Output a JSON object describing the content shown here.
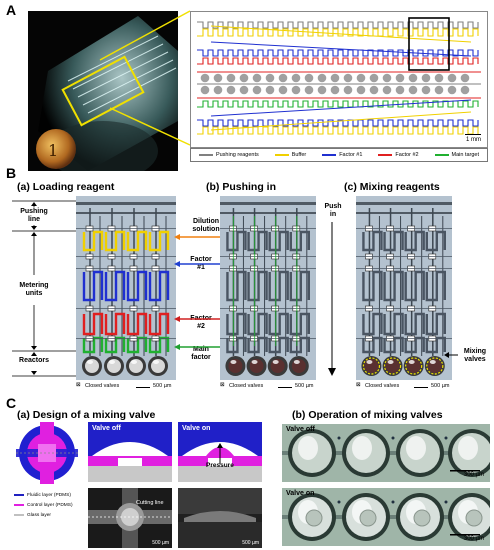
{
  "panels": {
    "a": {
      "letter": "A",
      "scale_bar": "1 mm",
      "legend": [
        {
          "label": "Pushing reagents",
          "color": "#808080"
        },
        {
          "label": "Buffer",
          "color": "#f0d000"
        },
        {
          "label": "Factor #1",
          "color": "#2030d0"
        },
        {
          "label": "Factor #2",
          "color": "#e02020"
        },
        {
          "label": "Main target",
          "color": "#20b030"
        }
      ]
    },
    "b": {
      "letter": "B",
      "titles": [
        "(a) Loading reagent",
        "(b) Pushing in",
        "(c) Mixing reagents"
      ],
      "left_labels": {
        "pushing": "Pushing\nline",
        "metering": "Metering\nunits",
        "reactors": "Reactors"
      },
      "right_labels": {
        "dilution": "Dilution\nsolution",
        "factor1": "Factor\n#1",
        "factor2": "Factor\n#2",
        "main": "Main\nfactor"
      },
      "push_in": "Push\nin",
      "mixing_valves": "Mixing\nvalves",
      "closed_valves": "Closed valves",
      "scale": "500 µm"
    },
    "c": {
      "letter": "C",
      "title_a": "(a) Design of a mixing valve",
      "title_b": "(b) Operation of mixing valves",
      "valve_off": "Valve off",
      "valve_on": "Valve on",
      "pressure": "Pressure",
      "cutting_line": "Cutting line",
      "scale_small": "500 µm",
      "scale_small2": "500 µm",
      "scale_photo": "300 µm",
      "layers": [
        {
          "label": "Fluidic layer (PDMS)",
          "color": "#2020c0"
        },
        {
          "label": "Control layer (PDMS)",
          "color": "#e020e0"
        },
        {
          "label": "Glass layer",
          "color": "#c0c0c0"
        }
      ],
      "row_labels": [
        "Valve off",
        "Valve on"
      ]
    }
  },
  "colors": {
    "blue": "#2030d0",
    "yellow": "#f0d000",
    "red": "#e02020",
    "green": "#20b030",
    "gray": "#808080",
    "magenta": "#e020e0"
  }
}
